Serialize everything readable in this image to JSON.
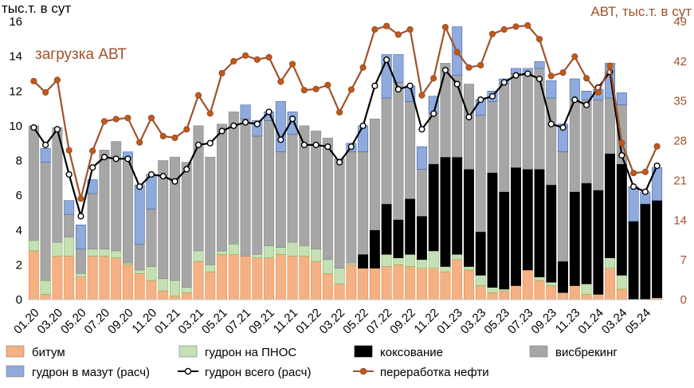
{
  "chart_data": {
    "type": "bar",
    "left_axis_label": "тыс.т. в сут",
    "right_axis_label": "АВТ, тыс.т. в сут",
    "annotation": "загрузка АВТ",
    "ylim_left": [
      0,
      16
    ],
    "yticks_left": [
      0,
      2,
      4,
      6,
      8,
      10,
      12,
      14,
      16
    ],
    "ylim_right": [
      0,
      49
    ],
    "yticks_right": [
      0,
      7,
      14,
      21,
      28,
      35,
      42,
      49
    ],
    "grid": false,
    "legend_position": "bottom",
    "categories": [
      "01.20",
      "02.20",
      "03.20",
      "04.20",
      "05.20",
      "06.20",
      "07.20",
      "08.20",
      "09.20",
      "10.20",
      "11.20",
      "12.20",
      "01.21",
      "02.21",
      "03.21",
      "04.21",
      "05.21",
      "06.21",
      "07.21",
      "08.21",
      "09.21",
      "10.21",
      "11.21",
      "12.21",
      "01.22",
      "02.22",
      "03.22",
      "04.22",
      "05.22",
      "06.22",
      "07.22",
      "08.22",
      "09.22",
      "10.22",
      "11.22",
      "12.22",
      "01.23",
      "02.23",
      "03.23",
      "04.23",
      "05.23",
      "06.23",
      "07.23",
      "08.23",
      "09.23",
      "10.23",
      "11.23",
      "12.23",
      "01.24",
      "02.24",
      "03.24",
      "04.24",
      "05.24",
      "06.24"
    ],
    "x_tick_labels": [
      "01.20",
      "03.20",
      "05.20",
      "07.20",
      "09.20",
      "11.20",
      "01.21",
      "03.21",
      "05.21",
      "07.21",
      "09.21",
      "11.21",
      "01.22",
      "03.22",
      "05.22",
      "07.22",
      "09.22",
      "11.22",
      "01.23",
      "03.23",
      "05.23",
      "07.23",
      "09.23",
      "11.23",
      "01.24",
      "03.24",
      "05.24"
    ],
    "stacked_series": [
      {
        "name": "битум",
        "color": "#F4B183",
        "values": [
          2.8,
          0.3,
          2.5,
          2.5,
          1.3,
          2.5,
          2.5,
          2.4,
          2.0,
          1.5,
          1.1,
          0.5,
          0.2,
          0.4,
          2.2,
          1.6,
          2.6,
          2.6,
          2.5,
          2.4,
          2.4,
          2.6,
          2.5,
          2.5,
          2.2,
          1.5,
          0.9,
          2.0,
          1.8,
          1.8,
          1.9,
          2.0,
          1.9,
          1.8,
          1.8,
          1.6,
          2.3,
          1.7,
          0.8,
          0.4,
          0.5,
          0.8,
          1.7,
          1.1,
          0.8,
          0.4,
          0.8,
          0.3,
          0.3,
          1.8,
          0.6,
          0.0,
          0.0,
          0.1
        ]
      },
      {
        "name": "гудрон на ПНОС",
        "color": "#C5E0B4",
        "values": [
          0.6,
          0.8,
          0.8,
          1.1,
          0.2,
          0.4,
          0.4,
          0.4,
          0.1,
          0.2,
          0.8,
          0.7,
          0.9,
          0.3,
          0.6,
          0.4,
          0.2,
          0.6,
          0.0,
          0.2,
          0.7,
          0.4,
          0.8,
          0.6,
          0.7,
          0.8,
          0.9,
          0.1,
          0.0,
          0.0,
          0.7,
          0.4,
          0.7,
          0.5,
          1.0,
          0.3,
          0.3,
          0.2,
          0.6,
          0.3,
          0.1,
          0.0,
          0.0,
          0.2,
          0.2,
          0.0,
          0.0,
          0.6,
          0.0,
          0.6,
          0.8,
          0.0,
          0.0,
          0.0
        ]
      },
      {
        "name": "коксование",
        "color": "#000000",
        "values": [
          0,
          0,
          0,
          0,
          0,
          0,
          0,
          0,
          0,
          0,
          0,
          0,
          0,
          0,
          0,
          0,
          0,
          0,
          0,
          0,
          0,
          0,
          0,
          0,
          0,
          0,
          0,
          0,
          0.8,
          2.2,
          2.9,
          2.2,
          3.2,
          2.5,
          5.0,
          6.3,
          5.6,
          5.6,
          2.5,
          6.6,
          5.6,
          6.8,
          5.8,
          6.2,
          5.6,
          1.8,
          5.4,
          5.8,
          6.0,
          6.0,
          6.4,
          4.5,
          5.5,
          5.6
        ]
      },
      {
        "name": "висбрекинг",
        "color": "#A6A6A6",
        "values": [
          6.6,
          6.8,
          6.6,
          1.3,
          1.4,
          3.2,
          5.7,
          6.3,
          6.1,
          1.5,
          3.3,
          6.8,
          7.1,
          7.2,
          7.2,
          6.2,
          7.3,
          7.6,
          7.9,
          6.8,
          7.2,
          5.5,
          6.2,
          6.9,
          6.8,
          7.0,
          6.3,
          6.4,
          5.9,
          6.4,
          6.1,
          7.9,
          5.6,
          2.7,
          2.9,
          5.4,
          4.7,
          4.9,
          6.7,
          4.1,
          6.2,
          5.4,
          5.5,
          5.8,
          5.0,
          6.3,
          5.3,
          4.8,
          5.2,
          3.2,
          3.4,
          0.0,
          0.0,
          0.0
        ]
      },
      {
        "name": "гудрон в мазут (расч)",
        "color": "#8FAADC",
        "values": [
          0,
          0.8,
          0,
          0.8,
          1.4,
          0.8,
          0,
          0,
          0.3,
          3.4,
          2.0,
          0,
          0,
          0,
          0,
          0,
          0,
          0,
          0.8,
          0.9,
          0.5,
          2.9,
          1.3,
          0,
          0,
          0,
          0,
          0.5,
          1.5,
          0,
          2.5,
          1.6,
          0.9,
          1.3,
          1.0,
          0,
          2.8,
          0,
          0.9,
          0.6,
          0.3,
          0.3,
          0.3,
          0.4,
          1.0,
          1.6,
          1.2,
          0.5,
          0.6,
          2.0,
          0.7,
          2.0,
          0.7,
          1.9
        ]
      }
    ],
    "line_series": [
      {
        "name": "гудрон всего (расч)",
        "axis": "left",
        "color": "#000000",
        "marker_fill": "#ffffff",
        "values": [
          9.9,
          8.9,
          9.8,
          7.2,
          4.8,
          7.6,
          8.2,
          8.1,
          8.1,
          6.5,
          7.2,
          7.1,
          6.8,
          7.5,
          8.9,
          9.0,
          9.7,
          10.0,
          10.2,
          10.1,
          10.8,
          9.2,
          10.4,
          8.9,
          8.9,
          8.8,
          7.9,
          8.8,
          10.0,
          12.3,
          13.8,
          12.1,
          12.3,
          9.8,
          10.7,
          13.2,
          12.4,
          10.5,
          11.5,
          11.7,
          12.5,
          12.9,
          13.0,
          12.7,
          10.1,
          9.9,
          11.5,
          11.2,
          12.2,
          13.1,
          8.3,
          6.5,
          6.2,
          7.7
        ]
      },
      {
        "name": "переработка нефти",
        "axis": "right",
        "color": "#A0522D",
        "marker_fill": "#C55A11",
        "values": [
          38.5,
          36.5,
          38.7,
          26.3,
          17.8,
          26.2,
          31.4,
          31.8,
          32.0,
          27.7,
          32.0,
          28.8,
          28.5,
          30.0,
          36.0,
          32.8,
          39.9,
          42.0,
          43.0,
          42.3,
          42.7,
          38.4,
          41.5,
          36.9,
          37.1,
          37.8,
          33.0,
          37.0,
          40.9,
          47.6,
          48.2,
          46.7,
          47.6,
          36.0,
          39.0,
          48.0,
          43.6,
          40.9,
          41.3,
          46.8,
          47.6,
          48.1,
          48.3,
          45.9,
          39.4,
          40.0,
          42.8,
          39.0,
          36.5,
          41.2,
          27.6,
          22.3,
          22.5,
          27.0
        ]
      }
    ],
    "legend": [
      {
        "label": "битум",
        "type": "bar",
        "color": "#F4B183"
      },
      {
        "label": "гудрон на ПНОС",
        "type": "bar",
        "color": "#C5E0B4"
      },
      {
        "label": "коксование",
        "type": "bar",
        "color": "#000000"
      },
      {
        "label": "висбрекинг",
        "type": "bar",
        "color": "#A6A6A6"
      },
      {
        "label": "гудрон в мазут (расч)",
        "type": "bar",
        "color": "#8FAADC"
      },
      {
        "label": "гудрон всего (расч)",
        "type": "line",
        "color": "#000000",
        "marker_fill": "#ffffff"
      },
      {
        "label": "переработка нефти",
        "type": "line",
        "color": "#A0522D",
        "marker_fill": "#C55A11"
      }
    ]
  }
}
